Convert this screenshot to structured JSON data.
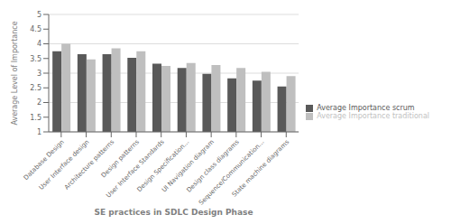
{
  "chart_data": {
    "type": "bar",
    "categories": [
      "Database Design",
      "User Interface design",
      "Architecture patterns",
      "Design patterns",
      "User Interface Standards",
      "Design Specification...",
      "UI Navigation diagram",
      "Design class diagrams",
      "Sequence/Communication...",
      "State machine diagrams"
    ],
    "series": [
      {
        "name": "Average Importance scrum",
        "color": "#595959",
        "values": [
          3.75,
          3.65,
          3.65,
          3.52,
          3.32,
          3.18,
          2.98,
          2.82,
          2.75,
          2.55
        ]
      },
      {
        "name": "Average Importance traditional",
        "color": "#bfbfbf",
        "values": [
          4.0,
          3.47,
          3.85,
          3.75,
          3.25,
          3.35,
          3.28,
          3.18,
          3.05,
          2.9
        ]
      }
    ],
    "xlabel": "SE practices in SDLC Design Phase",
    "ylabel": "Average Level of Importance",
    "ylim": [
      1,
      5
    ],
    "yticks": [
      1,
      1.5,
      2,
      2.5,
      3,
      3.5,
      4,
      4.5,
      5
    ],
    "grid": true,
    "legend": "right"
  }
}
